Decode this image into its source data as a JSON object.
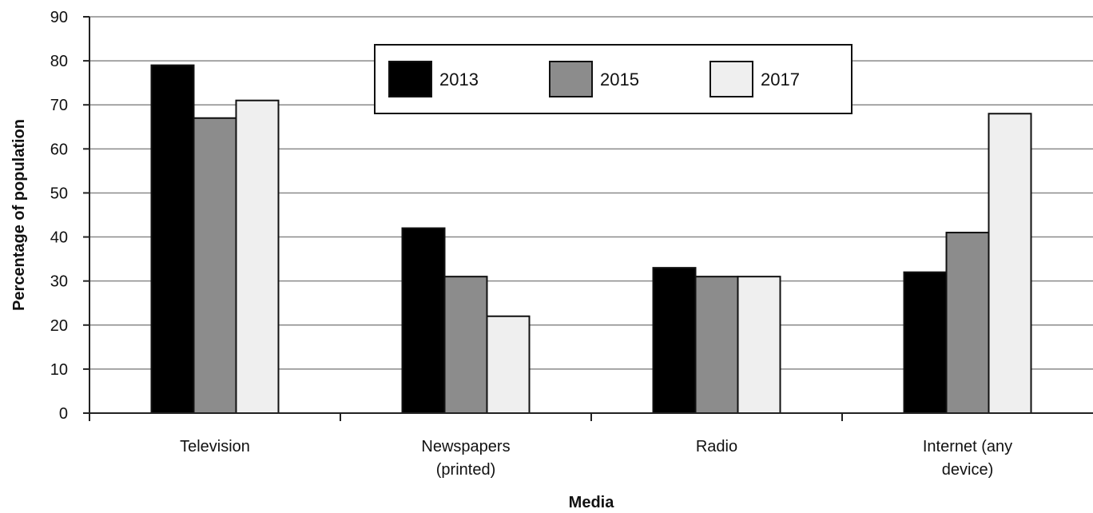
{
  "chart_data": {
    "type": "bar",
    "categories": [
      [
        "Television"
      ],
      [
        "Newspapers",
        "(printed)"
      ],
      [
        "Radio"
      ],
      [
        "Internet (any",
        "device)"
      ]
    ],
    "series": [
      {
        "name": "2013",
        "values": [
          79,
          42,
          33,
          32
        ],
        "color": "#000000"
      },
      {
        "name": "2015",
        "values": [
          67,
          31,
          31,
          41
        ],
        "color": "#8c8c8c"
      },
      {
        "name": "2017",
        "values": [
          71,
          22,
          31,
          68
        ],
        "color": "#efefef"
      }
    ],
    "xlabel": "Media",
    "ylabel": "Percentage of population",
    "ylim": [
      0,
      90
    ],
    "yticks": [
      0,
      10,
      20,
      30,
      40,
      50,
      60,
      70,
      80,
      90
    ],
    "grid": true,
    "legend_position": "top-center"
  }
}
